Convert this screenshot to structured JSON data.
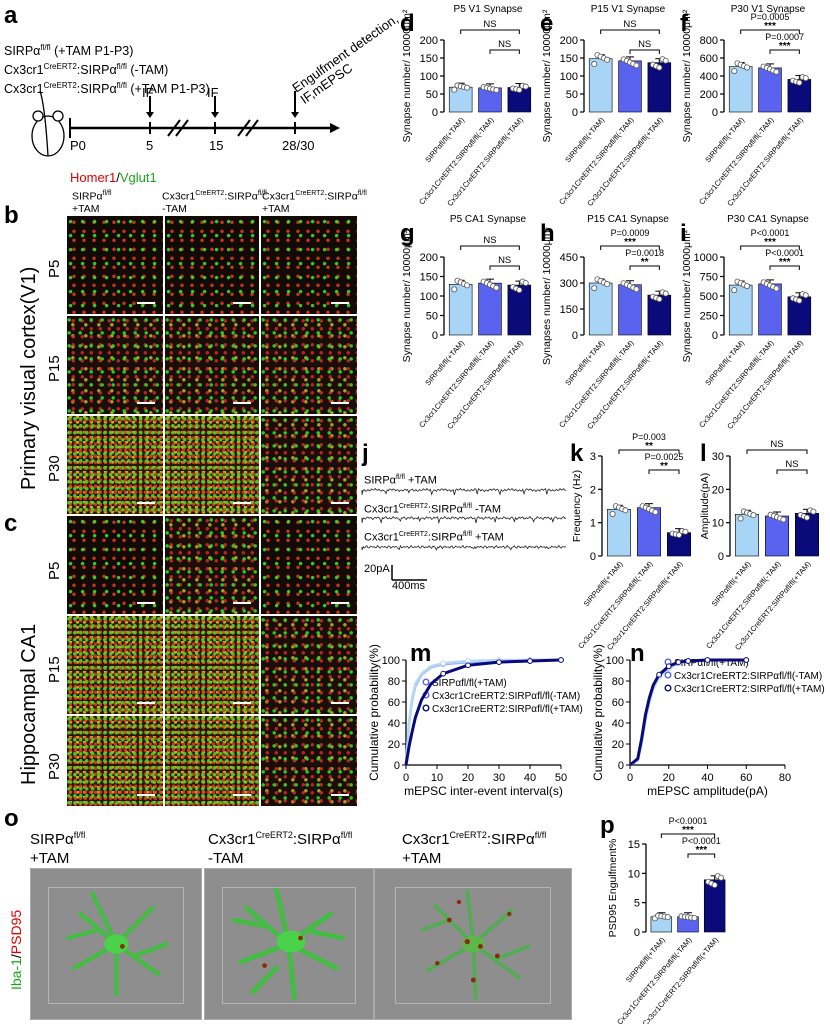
{
  "panels": {
    "a": "a",
    "b": "b",
    "c": "c",
    "d": "d",
    "e": "e",
    "f": "f",
    "g": "g",
    "h": "h",
    "i": "i",
    "j": "j",
    "k": "k",
    "l": "l",
    "m": "m",
    "n": "n",
    "o": "o",
    "p": "p"
  },
  "panel_a": {
    "groups": [
      "SIRPαfl/fl (+TAM P1-P3)",
      "Cx3cr1CreERT2:SIRPαfl/fl (-TAM)",
      "Cx3cr1CreERT2:SIRPαfl/fl (+TAM P1-P3)"
    ],
    "timeline_ticks": [
      "P0",
      "5",
      "15",
      "28/30"
    ],
    "arrow_labels": [
      "IF",
      "IF",
      "Engulfment detection, IF,mEPSC"
    ]
  },
  "panel_b": {
    "legend_red": "Homer1",
    "legend_slash": "/",
    "legend_green": "Vglut1",
    "col_headers": [
      "SIRPαfl/fl +TAM",
      "Cx3cr1CreERT2:SIRPαfl/fl -TAM",
      "Cx3cr1CreERT2:SIRPαfl/fl +TAM"
    ],
    "rows": [
      "P5",
      "P15",
      "P30"
    ],
    "side_title": "Primary visual cortex(V1)"
  },
  "panel_c": {
    "rows": [
      "P5",
      "P15",
      "P30"
    ],
    "side_title": "Hippocampal CA1"
  },
  "synapse_groups": [
    "SIRPαfl/fl(+TAM)",
    "Cx3cr1CreERT2:SIRPαfl/fl(-TAM)",
    "Cx3cr1CreERT2:SIRPαfl/fl(+TAM)"
  ],
  "chart_data": [
    {
      "id": "d",
      "type": "bar",
      "title": "P5 V1 Synapse",
      "ylabel": "Synapse number/ 10000μm²",
      "ylim": [
        0,
        200
      ],
      "yticks": [
        0,
        50,
        100,
        150,
        200
      ],
      "values": [
        69,
        67,
        68
      ],
      "sig": [
        {
          "label": "NS",
          "from": 0,
          "to": 2
        },
        {
          "label": "NS",
          "from": 1,
          "to": 2
        }
      ]
    },
    {
      "id": "e",
      "type": "bar",
      "title": "P15 V1 Synapse",
      "ylabel": "Synapse number/ 10000μm²",
      "ylim": [
        0,
        200
      ],
      "yticks": [
        0,
        50,
        100,
        150,
        200
      ],
      "values": [
        148,
        142,
        137
      ],
      "sig": [
        {
          "label": "NS",
          "from": 0,
          "to": 2
        },
        {
          "label": "NS",
          "from": 1,
          "to": 2
        }
      ]
    },
    {
      "id": "f",
      "type": "bar",
      "title": "P30 V1 Synapse",
      "ylabel": "Synapse number/ 10000μm²",
      "ylim": [
        0,
        800
      ],
      "yticks": [
        0,
        200,
        400,
        600,
        800
      ],
      "values": [
        505,
        490,
        362
      ],
      "sig": [
        {
          "label": "P=0.0005",
          "stars": "***",
          "from": 0,
          "to": 2
        },
        {
          "label": "P=0.0007",
          "stars": "***",
          "from": 1,
          "to": 2
        }
      ]
    },
    {
      "id": "g",
      "type": "bar",
      "title": "P5 CA1 Synapse",
      "ylabel": "Synapse number/ 10000μm²",
      "ylim": [
        0,
        200
      ],
      "yticks": [
        0,
        50,
        100,
        150,
        200
      ],
      "values": [
        130,
        133,
        128
      ],
      "sig": [
        {
          "label": "NS",
          "from": 0,
          "to": 2
        },
        {
          "label": "NS",
          "from": 1,
          "to": 2
        }
      ]
    },
    {
      "id": "h",
      "type": "bar",
      "title": "P15 CA1 Synapse",
      "ylabel": "Synapses number/ 10000μm²",
      "ylim": [
        0,
        450
      ],
      "yticks": [
        0,
        150,
        300,
        450
      ],
      "values": [
        300,
        290,
        230
      ],
      "sig": [
        {
          "label": "P=0.0009",
          "stars": "***",
          "from": 0,
          "to": 2
        },
        {
          "label": "P=0.0018",
          "stars": "**",
          "from": 1,
          "to": 2
        }
      ]
    },
    {
      "id": "i",
      "type": "bar",
      "title": "P30 CA1 Synapse",
      "ylabel": "Synapse number/ 10000μm²",
      "ylim": [
        0,
        1000
      ],
      "yticks": [
        0,
        250,
        500,
        750,
        1000
      ],
      "values": [
        640,
        655,
        490
      ],
      "sig": [
        {
          "label": "P<0.0001",
          "stars": "***",
          "from": 0,
          "to": 2
        },
        {
          "label": "P<0.0001",
          "stars": "***",
          "from": 1,
          "to": 2
        }
      ]
    },
    {
      "id": "k",
      "type": "bar",
      "ylabel": "Frequency (Hz)",
      "ylim": [
        0,
        3
      ],
      "yticks": [
        0,
        1,
        2,
        3
      ],
      "values": [
        1.4,
        1.45,
        0.7
      ],
      "sig": [
        {
          "label": "P=0.003",
          "stars": "**",
          "from": 0,
          "to": 2
        },
        {
          "label": "P=0.0025",
          "stars": "**",
          "from": 1,
          "to": 2
        }
      ]
    },
    {
      "id": "l",
      "type": "bar",
      "ylabel": "Amplitude(pA)",
      "ylim": [
        0,
        30
      ],
      "yticks": [
        0,
        10,
        20,
        30
      ],
      "values": [
        12.5,
        12,
        12.8
      ],
      "sig": [
        {
          "label": "NS",
          "from": 0,
          "to": 2
        },
        {
          "label": "NS",
          "from": 1,
          "to": 2
        }
      ]
    },
    {
      "id": "m",
      "type": "line",
      "xlabel": "mEPSC inter-event interval(s)",
      "ylabel": "Cumulative probability(%)",
      "xlim": [
        0,
        50
      ],
      "ylim": [
        0,
        100
      ],
      "xticks": [
        0,
        10,
        20,
        30,
        40,
        50
      ],
      "yticks": [
        0,
        20,
        40,
        60,
        80,
        100
      ],
      "series": [
        {
          "name": "SIRPαfl/fl(+TAM)",
          "x": [
            0,
            1,
            2,
            3,
            5,
            8,
            12,
            20,
            30,
            40,
            50
          ],
          "y": [
            0,
            40,
            62,
            75,
            86,
            93,
            96,
            98,
            99,
            100,
            100
          ]
        },
        {
          "name": "Cx3cr1CreERT2:SIRPαfl/fl(-TAM)",
          "x": [
            0,
            1,
            2,
            3,
            5,
            8,
            12,
            20,
            30,
            40,
            50
          ],
          "y": [
            0,
            42,
            64,
            77,
            87,
            94,
            97,
            99,
            100,
            100,
            100
          ]
        },
        {
          "name": "Cx3cr1CreERT2:SIRPαfl/fl(+TAM)",
          "x": [
            0,
            1,
            2,
            3,
            5,
            8,
            12,
            20,
            30,
            40,
            50
          ],
          "y": [
            0,
            18,
            32,
            45,
            62,
            77,
            87,
            95,
            98,
            99,
            100
          ]
        }
      ]
    },
    {
      "id": "n",
      "type": "line",
      "xlabel": "mEPSC amplitude(pA)",
      "ylabel": "Cumulative probability(%)",
      "xlim": [
        0,
        80
      ],
      "ylim": [
        0,
        100
      ],
      "xticks": [
        0,
        20,
        40,
        60,
        80
      ],
      "yticks": [
        0,
        20,
        40,
        60,
        80,
        100
      ],
      "series": [
        {
          "name": "SIRPαfl/fl(+TAM)",
          "x": [
            0,
            4,
            6,
            8,
            10,
            12,
            15,
            20,
            25,
            30,
            40,
            60
          ],
          "y": [
            0,
            5,
            22,
            45,
            62,
            74,
            85,
            93,
            97,
            99,
            100,
            100
          ]
        },
        {
          "name": "Cx3cr1CreERT2:SIRPαfl/fl(-TAM)",
          "x": [
            0,
            4,
            6,
            8,
            10,
            12,
            15,
            20,
            25,
            30,
            40,
            60
          ],
          "y": [
            0,
            4,
            20,
            42,
            60,
            72,
            84,
            92,
            97,
            99,
            100,
            100
          ]
        },
        {
          "name": "Cx3cr1CreERT2:SIRPαfl/fl(+TAM)",
          "x": [
            0,
            4,
            6,
            8,
            10,
            12,
            15,
            20,
            25,
            30,
            40,
            60
          ],
          "y": [
            0,
            6,
            25,
            48,
            64,
            76,
            86,
            94,
            98,
            99,
            100,
            100
          ]
        }
      ]
    },
    {
      "id": "p",
      "type": "bar",
      "ylabel": "PSD95 Engulfment%",
      "ylim": [
        0,
        15
      ],
      "yticks": [
        0,
        5,
        10,
        15
      ],
      "values": [
        2.6,
        2.6,
        8.9
      ],
      "sig": [
        {
          "label": "P<0.0001",
          "stars": "***",
          "from": 0,
          "to": 2
        },
        {
          "label": "P<0.0001",
          "stars": "***",
          "from": 1,
          "to": 2
        }
      ]
    }
  ],
  "panel_j": {
    "traces": [
      "SIRPαfl/fl +TAM",
      "Cx3cr1CreERT2:SIRPαfl/fl -TAM",
      "Cx3cr1CreERT2:SIRPαfl/fl +TAM"
    ],
    "scale_y": "20pA",
    "scale_x": "400ms"
  },
  "panel_o": {
    "col_headers": [
      "SIRPαfl/fl +TAM",
      "Cx3cr1CreERT2:SIRPαfl/fl -TAM",
      "Cx3cr1CreERT2:SIRPαfl/fl +TAM"
    ],
    "side_green": "Iba-1",
    "side_slash": "/",
    "side_red": "PSD95"
  },
  "colors": {
    "g1": "#a8d4f5",
    "g2": "#5a62f0",
    "g3": "#0a0a7a"
  }
}
